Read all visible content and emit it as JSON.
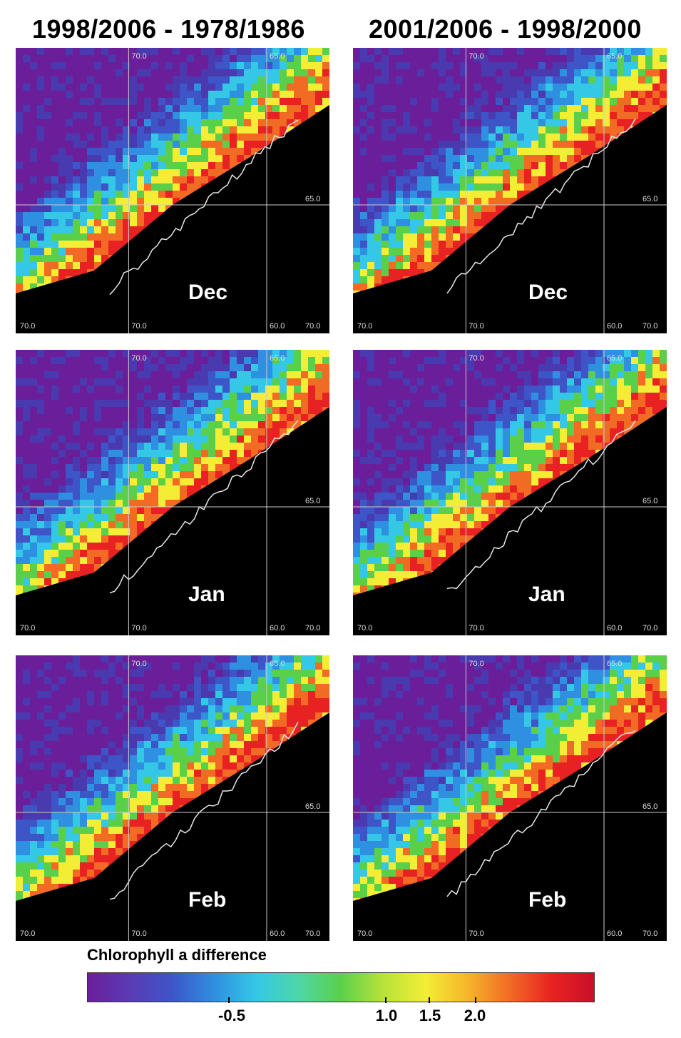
{
  "titles": {
    "left": "1998/2006 - 1978/1986",
    "right": "2001/2006 - 1998/2000"
  },
  "months": [
    "Dec",
    "Jan",
    "Feb"
  ],
  "coords": {
    "lat_top": "70.0",
    "lon_right_top": "65.0",
    "lat_mid": "65.0",
    "bottom_left": "70.0",
    "bottom_mid": "70.0",
    "bottom_right_a": "60.0",
    "bottom_right_b": "70.0"
  },
  "legend": {
    "title": "Chlorophyll a difference",
    "ticks": [
      "-0.5",
      "1.0",
      "1.5",
      "2.0"
    ],
    "colors": [
      "#6b1e9a",
      "#5a3bb5",
      "#3d55c8",
      "#2f8fe0",
      "#34c8e6",
      "#4fd6a8",
      "#5ad04a",
      "#b8e23a",
      "#f3ee35",
      "#f6b52d",
      "#f16b25",
      "#e82222",
      "#c8102a"
    ]
  }
}
